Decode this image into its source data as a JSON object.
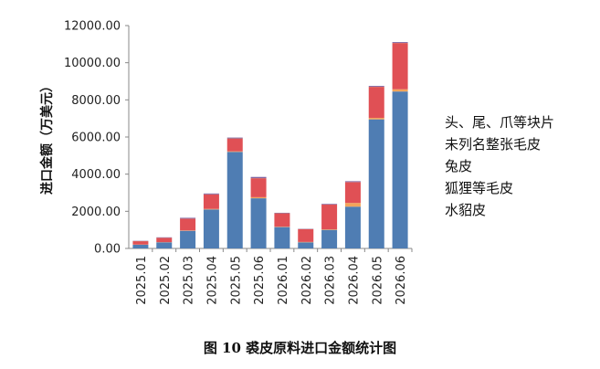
{
  "chart_data": {
    "type": "bar",
    "stacked": true,
    "categories": [
      "2025.01",
      "2025.02",
      "2025.03",
      "2025.04",
      "2025.05",
      "2025.06",
      "2026.01",
      "2026.02",
      "2026.03",
      "2026.04",
      "2026.05",
      "2026.06"
    ],
    "ylabel": "进口金额（万美元）",
    "ylim": [
      0,
      12000
    ],
    "yticks": [
      "0.00",
      "2000.00",
      "4000.00",
      "6000.00",
      "8000.00",
      "10000.00",
      "12000.00"
    ],
    "legend_position": "right",
    "grid": false,
    "series": [
      {
        "name": "头、尾、爪等块片",
        "color": "#4f7db3",
        "values": [
          200,
          330,
          950,
          2100,
          5200,
          2700,
          1150,
          330,
          1000,
          2250,
          6950,
          8450
        ]
      },
      {
        "name": "未列名整张毛皮",
        "color": "#f2a45a",
        "values": [
          10,
          10,
          20,
          30,
          30,
          60,
          20,
          20,
          30,
          200,
          80,
          120
        ]
      },
      {
        "name": "兔皮",
        "color": "#e05055",
        "values": [
          180,
          230,
          630,
          780,
          690,
          1020,
          720,
          690,
          1330,
          1120,
          1670,
          2490
        ]
      },
      {
        "name": "狐狸等毛皮",
        "color": "#9bbb59",
        "values": [
          5,
          5,
          5,
          5,
          5,
          5,
          5,
          5,
          5,
          5,
          5,
          5
        ]
      },
      {
        "name": "水貂皮",
        "color": "#8064a2",
        "values": [
          15,
          25,
          45,
          45,
          45,
          65,
          25,
          15,
          35,
          45,
          45,
          45
        ]
      }
    ]
  },
  "legend_items": [
    "头、尾、爪等块片",
    "未列名整张毛皮",
    "兔皮",
    "狐狸等毛皮",
    "水貂皮"
  ],
  "caption": "图 10 裘皮原料进口金额统计图"
}
